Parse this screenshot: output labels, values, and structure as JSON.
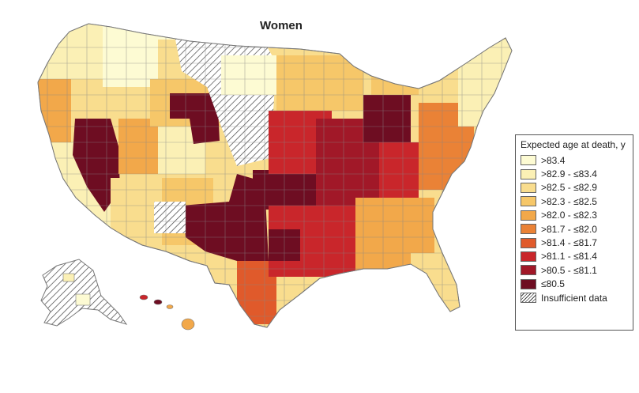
{
  "title": "Women",
  "legend": {
    "title": "Expected age at death, y",
    "entries": [
      {
        "label": ">83.4",
        "color": "#fdfbd3"
      },
      {
        "label": ">82.9 - ≤83.4",
        "color": "#fbf0b5"
      },
      {
        "label": ">82.5 - ≤82.9",
        "color": "#f9dd8e"
      },
      {
        "label": ">82.3 - ≤82.5",
        "color": "#f6c769"
      },
      {
        "label": ">82.0 - ≤82.3",
        "color": "#f2a84a"
      },
      {
        "label": ">81.7 - ≤82.0",
        "color": "#ea8236"
      },
      {
        "label": ">81.4 - ≤81.7",
        "color": "#e05a2b"
      },
      {
        "label": ">81.1 - ≤81.4",
        "color": "#c9262b"
      },
      {
        "label": ">80.5 - ≤81.1",
        "color": "#a11828"
      },
      {
        "label": "≤80.5",
        "color": "#6e0d22"
      },
      {
        "label": "Insufficient data",
        "color": "hatch"
      }
    ]
  },
  "colors": {
    "outline": "#9a9a9a",
    "insufficient_hatch": "#444444"
  }
}
